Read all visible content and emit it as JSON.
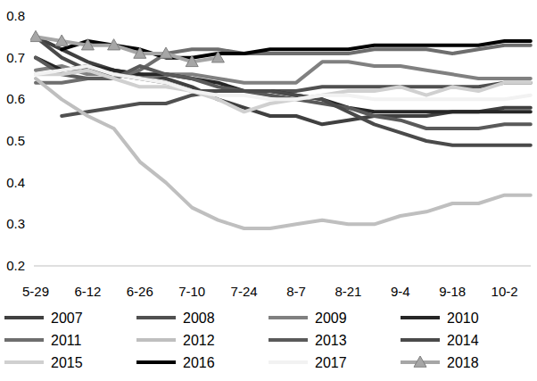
{
  "chart_data": {
    "type": "line",
    "categories": [
      "5-29",
      null,
      "6-12",
      null,
      "6-26",
      null,
      "7-10",
      null,
      "7-24",
      null,
      "8-7",
      null,
      "8-21",
      null,
      "9-4",
      null,
      "9-18",
      null,
      "10-2",
      null
    ],
    "ylim": [
      0.2,
      0.8
    ],
    "yticks": [
      0.2,
      0.3,
      0.4,
      0.5,
      0.6,
      0.7,
      0.8
    ],
    "grid": false,
    "legend": "bottom",
    "series": [
      {
        "name": "2007",
        "color": "#404040",
        "values": [
          0.75,
          0.72,
          0.69,
          0.67,
          0.66,
          0.65,
          0.63,
          0.6,
          0.58,
          0.56,
          0.56,
          0.54,
          0.55,
          0.56,
          0.56,
          0.56,
          0.57,
          0.57,
          0.58,
          0.58
        ]
      },
      {
        "name": "2008",
        "color": "#505050",
        "values": [
          null,
          0.56,
          0.57,
          0.58,
          0.59,
          0.59,
          0.61,
          0.62,
          0.62,
          0.62,
          0.62,
          0.63,
          0.63,
          0.63,
          0.63,
          0.63,
          0.63,
          0.63,
          0.64,
          0.64
        ]
      },
      {
        "name": "2009",
        "color": "#808080",
        "values": [
          0.67,
          0.68,
          0.66,
          0.66,
          0.65,
          0.66,
          0.66,
          0.65,
          0.64,
          0.64,
          0.64,
          0.69,
          0.69,
          0.68,
          0.68,
          0.67,
          0.66,
          0.65,
          0.65,
          0.65
        ]
      },
      {
        "name": "2010",
        "color": "#262626",
        "values": [
          0.7,
          0.67,
          0.68,
          0.67,
          0.66,
          0.66,
          0.65,
          0.64,
          0.62,
          0.62,
          0.61,
          0.6,
          0.58,
          0.57,
          0.57,
          0.57,
          0.57,
          0.57,
          0.57,
          0.57
        ]
      },
      {
        "name": "2011",
        "color": "#6e6e6e",
        "values": [
          0.64,
          0.64,
          0.65,
          0.65,
          0.67,
          0.71,
          0.72,
          0.72,
          0.71,
          0.71,
          0.71,
          0.71,
          0.71,
          0.72,
          0.72,
          0.72,
          0.71,
          0.72,
          0.73,
          0.73
        ]
      },
      {
        "name": "2012",
        "color": "#bfbfbf",
        "values": [
          0.65,
          0.6,
          0.56,
          0.53,
          0.45,
          0.4,
          0.34,
          0.31,
          0.29,
          0.29,
          0.3,
          0.31,
          0.3,
          0.3,
          0.32,
          0.33,
          0.35,
          0.35,
          0.37,
          0.37
        ]
      },
      {
        "name": "2013",
        "color": "#5a5a5a",
        "values": [
          0.7,
          0.66,
          0.65,
          0.65,
          0.68,
          0.66,
          0.65,
          0.63,
          0.62,
          0.61,
          0.6,
          0.59,
          0.58,
          0.56,
          0.55,
          0.53,
          0.53,
          0.53,
          0.54,
          0.54
        ]
      },
      {
        "name": "2014",
        "color": "#4a4a4a",
        "values": [
          0.75,
          0.7,
          0.67,
          0.66,
          0.65,
          0.64,
          0.62,
          0.62,
          0.62,
          0.62,
          0.61,
          0.6,
          0.57,
          0.54,
          0.52,
          0.5,
          0.49,
          0.49,
          0.49,
          0.49
        ]
      },
      {
        "name": "2015",
        "color": "#d0d0d0",
        "values": [
          0.66,
          0.66,
          0.67,
          0.65,
          0.63,
          0.63,
          0.62,
          0.6,
          0.57,
          0.59,
          0.6,
          0.61,
          0.62,
          0.62,
          0.63,
          0.61,
          0.63,
          0.62,
          0.64,
          0.64
        ]
      },
      {
        "name": "2016",
        "color": "#000000",
        "values": [
          null,
          0.72,
          0.74,
          0.73,
          0.72,
          0.7,
          0.7,
          0.71,
          0.71,
          0.72,
          0.72,
          0.72,
          0.72,
          0.73,
          0.73,
          0.73,
          0.73,
          0.73,
          0.74,
          0.74
        ]
      },
      {
        "name": "2017",
        "color": "#f2f2f2",
        "values": [
          0.66,
          0.67,
          0.68,
          0.66,
          0.65,
          0.64,
          0.62,
          0.61,
          0.61,
          0.6,
          0.6,
          0.61,
          0.61,
          0.6,
          0.6,
          0.6,
          0.6,
          0.6,
          0.6,
          0.61
        ]
      },
      {
        "name": "2018",
        "color": "#a6a6a6",
        "marker": "triangle",
        "values": [
          0.75,
          0.74,
          0.73,
          0.73,
          0.71,
          0.71,
          0.69,
          0.7,
          null,
          null,
          null,
          null,
          null,
          null,
          null,
          null,
          null,
          null,
          null,
          null
        ]
      }
    ]
  }
}
